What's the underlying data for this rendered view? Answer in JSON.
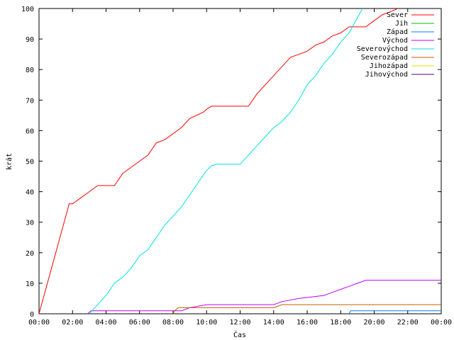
{
  "chart_data": {
    "type": "line",
    "title": "",
    "xlabel": "Čas",
    "ylabel": "krát",
    "xlim": [
      0,
      24
    ],
    "ylim": [
      0,
      100
    ],
    "x_ticks": [
      {
        "value": 0,
        "label": "00:00"
      },
      {
        "value": 2,
        "label": "02:00"
      },
      {
        "value": 4,
        "label": "04:00"
      },
      {
        "value": 6,
        "label": "06:00"
      },
      {
        "value": 8,
        "label": "08:00"
      },
      {
        "value": 10,
        "label": "10:00"
      },
      {
        "value": 12,
        "label": "12:00"
      },
      {
        "value": 14,
        "label": "14:00"
      },
      {
        "value": 16,
        "label": "16:00"
      },
      {
        "value": 18,
        "label": "18:00"
      },
      {
        "value": 20,
        "label": "20:00"
      },
      {
        "value": 22,
        "label": "22:00"
      },
      {
        "value": 24,
        "label": "00:00"
      }
    ],
    "y_ticks": [
      {
        "value": 0,
        "label": "0"
      },
      {
        "value": 10,
        "label": "10"
      },
      {
        "value": 20,
        "label": "20"
      },
      {
        "value": 30,
        "label": "30"
      },
      {
        "value": 40,
        "label": "40"
      },
      {
        "value": 50,
        "label": "50"
      },
      {
        "value": 60,
        "label": "60"
      },
      {
        "value": 70,
        "label": "70"
      },
      {
        "value": 80,
        "label": "80"
      },
      {
        "value": 90,
        "label": "90"
      },
      {
        "value": 100,
        "label": "100"
      }
    ],
    "grid": false,
    "legend_position": "top-right",
    "series": [
      {
        "name": "Sever",
        "color": "#ff0000",
        "points": [
          [
            0,
            0
          ],
          [
            1.8,
            36
          ],
          [
            2,
            36
          ],
          [
            2.5,
            38
          ],
          [
            3,
            40
          ],
          [
            3.5,
            42
          ],
          [
            4.5,
            42
          ],
          [
            5,
            46
          ],
          [
            5.5,
            48
          ],
          [
            6,
            50
          ],
          [
            6.5,
            52
          ],
          [
            7,
            56
          ],
          [
            7.5,
            57
          ],
          [
            8,
            59
          ],
          [
            8.5,
            61
          ],
          [
            9,
            64
          ],
          [
            9.8,
            66
          ],
          [
            10,
            67
          ],
          [
            10.3,
            68
          ],
          [
            12.5,
            68
          ],
          [
            13,
            72
          ],
          [
            13.5,
            75
          ],
          [
            14,
            78
          ],
          [
            14.5,
            81
          ],
          [
            15,
            84
          ],
          [
            15.5,
            85
          ],
          [
            16,
            86
          ],
          [
            16.5,
            88
          ],
          [
            17,
            89
          ],
          [
            17.5,
            91
          ],
          [
            18,
            92
          ],
          [
            18.5,
            94
          ],
          [
            19,
            94
          ],
          [
            19.5,
            94
          ],
          [
            20,
            96
          ],
          [
            20.5,
            98
          ],
          [
            21,
            99
          ],
          [
            21.4,
            100
          ]
        ]
      },
      {
        "name": "Jih",
        "color": "#00c000",
        "points": []
      },
      {
        "name": "Západ",
        "color": "#0080ff",
        "points": [
          [
            18.5,
            0
          ],
          [
            18.6,
            1
          ],
          [
            24,
            1
          ]
        ]
      },
      {
        "name": "Východ",
        "color": "#c000ff",
        "points": [
          [
            2.9,
            0
          ],
          [
            3.1,
            1
          ],
          [
            8.5,
            1
          ],
          [
            9,
            2
          ],
          [
            10,
            3
          ],
          [
            14,
            3
          ],
          [
            14.5,
            4
          ],
          [
            15.5,
            5
          ],
          [
            17,
            6
          ],
          [
            17.5,
            7
          ],
          [
            18,
            8
          ],
          [
            18.5,
            9
          ],
          [
            19,
            10
          ],
          [
            19.5,
            11
          ],
          [
            24,
            11
          ]
        ]
      },
      {
        "name": "Severovýchod",
        "color": "#00e0e0",
        "points": [
          [
            3,
            0
          ],
          [
            3.5,
            3
          ],
          [
            4,
            6
          ],
          [
            4.5,
            10
          ],
          [
            5,
            12
          ],
          [
            5.5,
            15
          ],
          [
            6,
            19
          ],
          [
            6.5,
            21
          ],
          [
            7,
            25
          ],
          [
            7.5,
            29
          ],
          [
            8,
            32
          ],
          [
            8.5,
            35
          ],
          [
            9,
            39
          ],
          [
            9.5,
            43
          ],
          [
            10,
            47
          ],
          [
            10.3,
            48.5
          ],
          [
            10.6,
            49
          ],
          [
            12,
            49
          ],
          [
            12.5,
            52
          ],
          [
            13,
            55
          ],
          [
            13.5,
            58
          ],
          [
            14,
            61
          ],
          [
            14.5,
            63
          ],
          [
            15,
            66
          ],
          [
            15.5,
            70
          ],
          [
            16,
            75
          ],
          [
            16.5,
            78
          ],
          [
            17,
            82
          ],
          [
            17.5,
            85
          ],
          [
            18,
            89
          ],
          [
            18.5,
            92
          ],
          [
            19,
            97
          ],
          [
            19.3,
            100
          ]
        ]
      },
      {
        "name": "Severozápad",
        "color": "#c06000",
        "points": [
          [
            8,
            0
          ],
          [
            8.1,
            1
          ],
          [
            8.3,
            2
          ],
          [
            14,
            2
          ],
          [
            14.5,
            3
          ],
          [
            24,
            3
          ]
        ]
      },
      {
        "name": "Jihozápad",
        "color": "#e0e000",
        "points": []
      },
      {
        "name": "Jihovýchod",
        "color": "#4000a0",
        "points": []
      }
    ]
  }
}
